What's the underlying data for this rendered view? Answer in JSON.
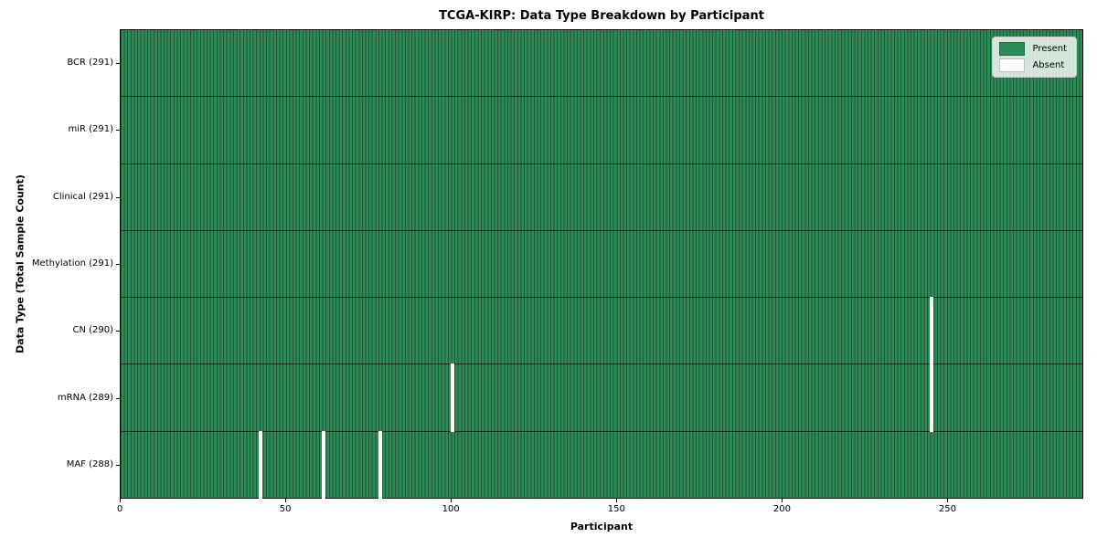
{
  "colors": {
    "present": "#2e8b57",
    "absent": "#ffffff",
    "cell_edge": "rgba(0,0,0,0.38)",
    "row_divider": "rgba(0,0,0,0.62)",
    "figure_bg": "#ffffff",
    "axis_spine": "#000000",
    "legend_bg": "rgba(255,255,255,0.8)",
    "legend_border": "#cccccc"
  },
  "chart_data": {
    "type": "heatmap",
    "title": "TCGA-KIRP: Data Type Breakdown by Participant",
    "xlabel": "Participant",
    "ylabel": "Data Type (Total Sample Count)",
    "x_range": [
      0,
      291
    ],
    "x_ticks": [
      0,
      50,
      100,
      150,
      200,
      250
    ],
    "n_participants": 291,
    "grid": false,
    "legend_position": "upper right",
    "rows": [
      {
        "data_type": "BCR",
        "label": "BCR (291)",
        "present_count": 291,
        "absent_participants": []
      },
      {
        "data_type": "miR",
        "label": "miR (291)",
        "present_count": 291,
        "absent_participants": []
      },
      {
        "data_type": "Clinical",
        "label": "Clinical (291)",
        "present_count": 291,
        "absent_participants": []
      },
      {
        "data_type": "Methylation",
        "label": "Methylation (291)",
        "present_count": 291,
        "absent_participants": []
      },
      {
        "data_type": "CN",
        "label": "CN (290)",
        "present_count": 290,
        "absent_participants": [
          245
        ]
      },
      {
        "data_type": "mRNA",
        "label": "mRNA (289)",
        "present_count": 289,
        "absent_participants": [
          100,
          245
        ]
      },
      {
        "data_type": "MAF",
        "label": "MAF (288)",
        "present_count": 288,
        "absent_participants": [
          42,
          61,
          78
        ]
      }
    ],
    "legend": [
      {
        "label": "Present",
        "color": "#2e8b57"
      },
      {
        "label": "Absent",
        "color": "#ffffff"
      }
    ]
  }
}
